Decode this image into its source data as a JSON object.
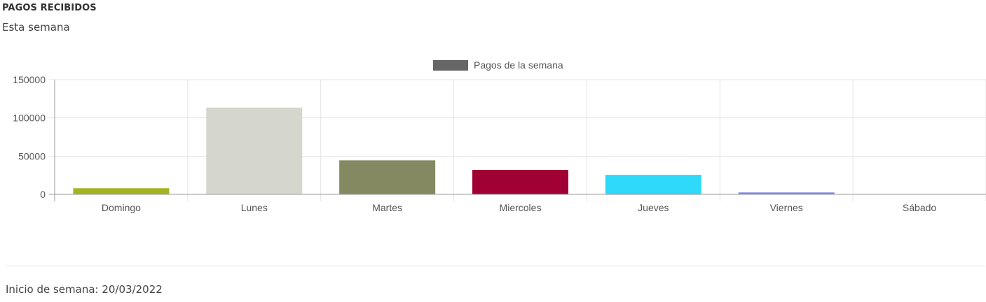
{
  "card": {
    "title": "PAGOS RECIBIDOS",
    "subtitle": "Esta semana",
    "footer": "Inicio de semana: 20/03/2022"
  },
  "chart_data": {
    "type": "bar",
    "title": "",
    "xlabel": "",
    "ylabel": "",
    "categories": [
      "Domingo",
      "Lunes",
      "Martes",
      "Miercoles",
      "Jueves",
      "Viernes",
      "Sábado"
    ],
    "series": [
      {
        "name": "Pagos de la semana",
        "values": [
          8000,
          113500,
          44500,
          32000,
          25500,
          2500,
          0
        ],
        "colors": [
          "#a3b421",
          "#d5d6cc",
          "#858961",
          "#a10034",
          "#2ed9f9",
          "#8089e6",
          "#cccccc"
        ]
      }
    ],
    "legend": {
      "position": "top",
      "swatch_color": "#666666"
    },
    "ylim": [
      0,
      150000
    ],
    "yticks": [
      0,
      50000,
      100000,
      150000
    ],
    "grid": true
  }
}
